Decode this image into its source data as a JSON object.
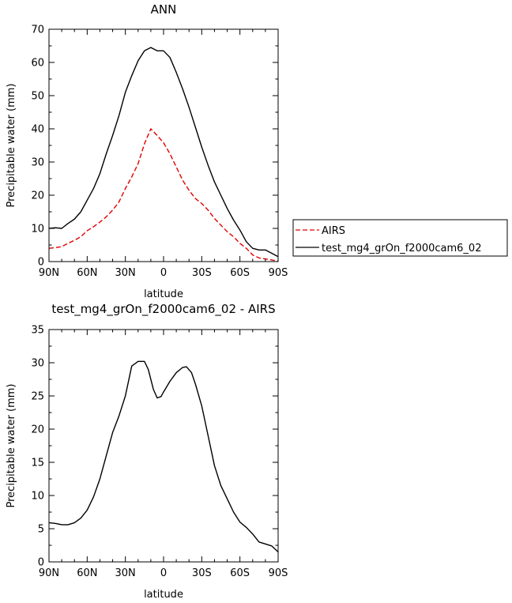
{
  "chart_data": [
    {
      "type": "line",
      "title": "ANN",
      "xlabel": "latitude",
      "ylabel": "Precipitable water (mm)",
      "xlim": [
        90,
        -90
      ],
      "ylim": [
        0,
        70
      ],
      "x_ticks": [
        90,
        60,
        30,
        0,
        -30,
        -60,
        -90
      ],
      "x_tick_labels": [
        "90N",
        "60N",
        "30N",
        "0",
        "30S",
        "60S",
        "90S"
      ],
      "y_ticks": [
        0,
        10,
        20,
        30,
        40,
        50,
        60,
        70
      ],
      "y_tick_labels": [
        "0",
        "10",
        "20",
        "30",
        "40",
        "50",
        "60",
        "70"
      ],
      "grid": false,
      "legend": "right",
      "series": [
        {
          "name": "AIRS",
          "color": "#e00000",
          "style": "dashed",
          "x": [
            90,
            85,
            80,
            75,
            70,
            65,
            60,
            55,
            50,
            45,
            40,
            35,
            30,
            25,
            20,
            15,
            10,
            5,
            0,
            -5,
            -10,
            -15,
            -20,
            -25,
            -30,
            -35,
            -40,
            -45,
            -50,
            -55,
            -60,
            -65,
            -70,
            -75,
            -80,
            -85,
            -90
          ],
          "y": [
            4.0,
            4.2,
            4.5,
            5.5,
            6.4,
            7.5,
            9.3,
            10.5,
            11.9,
            13.5,
            15.5,
            18.0,
            22.0,
            25.5,
            29.5,
            35.5,
            40.0,
            38.0,
            35.8,
            32.5,
            28.5,
            24.5,
            21.5,
            19.0,
            17.5,
            15.5,
            13.0,
            11.0,
            9.0,
            7.5,
            5.5,
            4.0,
            2.0,
            1.1,
            0.8,
            0.5,
            0.1
          ]
        },
        {
          "name": "test_mg4_grOn_f2000cam6_02",
          "color": "#000000",
          "style": "solid",
          "x": [
            90,
            85,
            80,
            75,
            70,
            65,
            60,
            55,
            50,
            45,
            40,
            35,
            30,
            25,
            20,
            15,
            10,
            5,
            0,
            -5,
            -10,
            -15,
            -20,
            -25,
            -30,
            -35,
            -40,
            -45,
            -50,
            -55,
            -60,
            -65,
            -70,
            -75,
            -80,
            -85,
            -90
          ],
          "y": [
            10.0,
            10.2,
            10.0,
            11.5,
            12.8,
            15.0,
            18.5,
            22.0,
            26.5,
            32.5,
            38.0,
            44.0,
            51.0,
            56.0,
            60.5,
            63.5,
            64.5,
            63.5,
            63.5,
            61.5,
            57.0,
            52.0,
            46.5,
            40.5,
            34.5,
            29.0,
            24.0,
            20.0,
            16.0,
            12.5,
            9.5,
            6.0,
            4.0,
            3.5,
            3.5,
            2.5,
            1.5
          ]
        }
      ]
    },
    {
      "type": "line",
      "title": "test_mg4_grOn_f2000cam6_02 - AIRS",
      "xlabel": "latitude",
      "ylabel": "Precipitable water (mm)",
      "xlim": [
        90,
        -90
      ],
      "ylim": [
        0,
        35
      ],
      "x_ticks": [
        90,
        60,
        30,
        0,
        -30,
        -60,
        -90
      ],
      "x_tick_labels": [
        "90N",
        "60N",
        "30N",
        "0",
        "30S",
        "60S",
        "90S"
      ],
      "y_ticks": [
        0,
        5,
        10,
        15,
        20,
        25,
        30,
        35
      ],
      "y_tick_labels": [
        "0",
        "5",
        "10",
        "15",
        "20",
        "25",
        "30",
        "35"
      ],
      "grid": false,
      "series": [
        {
          "color": "#000000",
          "style": "solid",
          "x": [
            90,
            85,
            80,
            75,
            70,
            65,
            60,
            55,
            50,
            45,
            40,
            35,
            30,
            25,
            20,
            15,
            12,
            8,
            5,
            2,
            0,
            -5,
            -10,
            -15,
            -18,
            -22,
            -25,
            -30,
            -35,
            -40,
            -45,
            -50,
            -55,
            -60,
            -65,
            -70,
            -75,
            -80,
            -85,
            -90
          ],
          "y": [
            5.9,
            5.8,
            5.6,
            5.6,
            5.9,
            6.6,
            7.8,
            9.8,
            12.5,
            16.0,
            19.5,
            22.0,
            25.0,
            29.5,
            30.2,
            30.2,
            29.0,
            26.0,
            24.7,
            24.9,
            25.6,
            27.2,
            28.5,
            29.3,
            29.4,
            28.5,
            26.8,
            23.5,
            19.0,
            14.5,
            11.5,
            9.5,
            7.5,
            6.0,
            5.2,
            4.2,
            3.0,
            2.7,
            2.4,
            1.5
          ]
        }
      ]
    }
  ]
}
